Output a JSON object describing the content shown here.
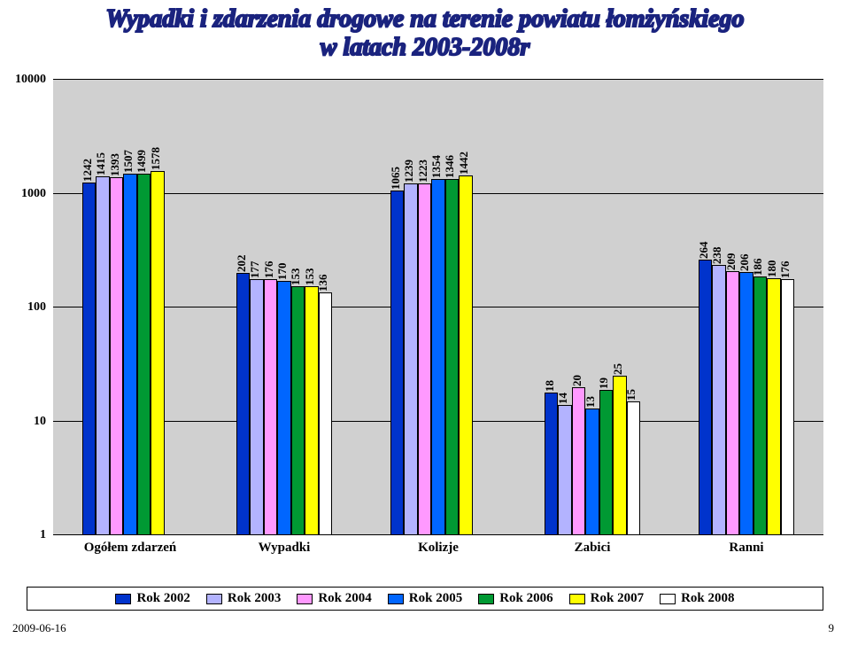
{
  "title_line1": "Wypadki i zdarzenia drogowe na terenie powiatu łomżyńskiego",
  "title_line2": "w latach 2003-2008r",
  "footer_date": "2009-06-16",
  "footer_page": "9",
  "chart": {
    "type": "bar",
    "yscale": "log",
    "yticks": [
      1,
      10,
      100,
      1000,
      10000
    ],
    "ytick_labels": [
      "1",
      "10",
      "100",
      "1000",
      "10000"
    ],
    "background_color": "#d0d0d0",
    "grid_color": "#000000",
    "categories": [
      "Ogółem zdarzeń",
      "Wypadki",
      "Kolizje",
      "Zabici",
      "Ranni"
    ],
    "series": [
      {
        "name": "Rok 2002",
        "color": "#0033cc",
        "values": [
          1242,
          202,
          1065,
          18,
          264
        ]
      },
      {
        "name": "Rok 2003",
        "color": "#b3b3ff",
        "values": [
          1415,
          177,
          1239,
          14,
          238
        ]
      },
      {
        "name": "Rok 2004",
        "color": "#ff99ff",
        "values": [
          1393,
          176,
          1223,
          20,
          209
        ]
      },
      {
        "name": "Rok 2005",
        "color": "#0066ff",
        "values": [
          1507,
          170,
          1354,
          13,
          206
        ]
      },
      {
        "name": "Rok 2006",
        "color": "#009933",
        "values": [
          1499,
          153,
          1346,
          19,
          186
        ]
      },
      {
        "name": "Rok 2007",
        "color": "#ffff00",
        "values": [
          1578,
          153,
          1442,
          25,
          180
        ]
      },
      {
        "name": "Rok 2008",
        "color": "#ffffff",
        "values": [
          null,
          136,
          null,
          15,
          176
        ]
      }
    ],
    "bar_border_color": "#000000",
    "label_fontsize": 13,
    "axis_fontsize": 14,
    "legend_fontsize": 15
  }
}
